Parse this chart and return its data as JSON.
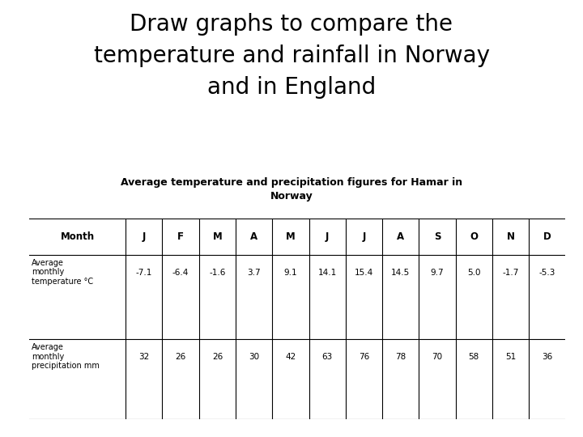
{
  "title": "Draw graphs to compare the\ntemperature and rainfall in Norway\nand in England",
  "table_title": "Average temperature and precipitation figures for Hamar in\nNorway",
  "months": [
    "J",
    "F",
    "M",
    "A",
    "M",
    "J",
    "J",
    "A",
    "S",
    "O",
    "N",
    "D"
  ],
  "temperature": [
    "-7.1",
    "-6.4",
    "-1.6",
    "3.7",
    "9.1",
    "14.1",
    "15.4",
    "14.5",
    "9.7",
    "5.0",
    "-1.7",
    "-5.3"
  ],
  "precipitation": [
    "32",
    "26",
    "26",
    "30",
    "42",
    "63",
    "76",
    "78",
    "70",
    "58",
    "51",
    "36"
  ],
  "row_labels": [
    "Month",
    "Average\nmonthly\ntemperature °C",
    "Average\nmonthly\nprecipitation mm"
  ],
  "background_color": "#ffffff",
  "text_color": "#000000",
  "title_fontsize": 20,
  "table_title_fontsize": 9,
  "header_fontsize": 8.5,
  "data_fontsize": 7.5,
  "label_fontsize": 7
}
